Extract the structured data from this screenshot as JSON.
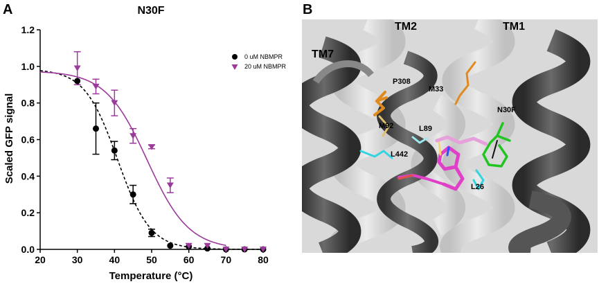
{
  "panels": {
    "a_letter": "A",
    "b_letter": "B"
  },
  "chart_data": {
    "type": "scatter",
    "title": "N30F",
    "xlabel": "Temperature (°C)",
    "ylabel": "Scaled GFP signal",
    "xlim": [
      20,
      80
    ],
    "ylim": [
      0,
      1.2
    ],
    "x_ticks": [
      "20",
      "30",
      "40",
      "50",
      "60",
      "70",
      "80"
    ],
    "y_ticks": [
      "0.0",
      "0.2",
      "0.4",
      "0.6",
      "0.8",
      "1.0",
      "1.2"
    ],
    "grid": false,
    "legend_position": "top-right",
    "series": [
      {
        "name": "0 uM NBMPR",
        "color": "#000000",
        "marker": "circle",
        "fit_line": "dashed",
        "x": [
          30,
          35,
          40,
          45,
          50,
          55,
          60,
          65,
          70,
          75,
          80
        ],
        "y": [
          0.92,
          0.66,
          0.54,
          0.3,
          0.09,
          0.02,
          0.015,
          0.005,
          0.0,
          0.0,
          0.0
        ],
        "error": [
          0.0,
          0.14,
          0.05,
          0.05,
          0.02,
          0.0,
          0.0,
          0.0,
          0.0,
          0.0,
          0.0
        ],
        "fit": {
          "top": 0.985,
          "bottom": 0.0,
          "tm": 40.8,
          "slope": 4.4
        }
      },
      {
        "name": "20 uM NBMPR",
        "color": "#9b3a9b",
        "marker": "triangle-down",
        "fit_line": "solid",
        "x": [
          30,
          35,
          40,
          45,
          50,
          55,
          60,
          65,
          70,
          75,
          80
        ],
        "y": [
          0.99,
          0.89,
          0.8,
          0.62,
          0.56,
          0.35,
          0.02,
          0.02,
          0.0,
          0.0,
          0.0
        ],
        "error": [
          0.09,
          0.04,
          0.07,
          0.04,
          0.01,
          0.04,
          0.0,
          0.0,
          0.0,
          0.0,
          0.0
        ],
        "fit": {
          "top": 0.975,
          "bottom": 0.0,
          "tm": 48.8,
          "slope": 5.6,
          "cutoff": 70
        }
      }
    ]
  },
  "structure_labels": {
    "tm2": "TM2",
    "tm1": "TM1",
    "tm7": "TM7",
    "p308": "P308",
    "m33": "M33",
    "n30f": "N30F",
    "m92": "M92",
    "l89": "L89",
    "l442": "L442",
    "l26": "L26"
  },
  "colors": {
    "helix_dark": "#3a3a3a",
    "helix_light": "#cfcfcf",
    "sidechain_orange": "#e08a1e",
    "sidechain_cyan": "#33d4e0",
    "sidechain_green": "#22c422",
    "ligand_magenta": "#e040c8"
  }
}
